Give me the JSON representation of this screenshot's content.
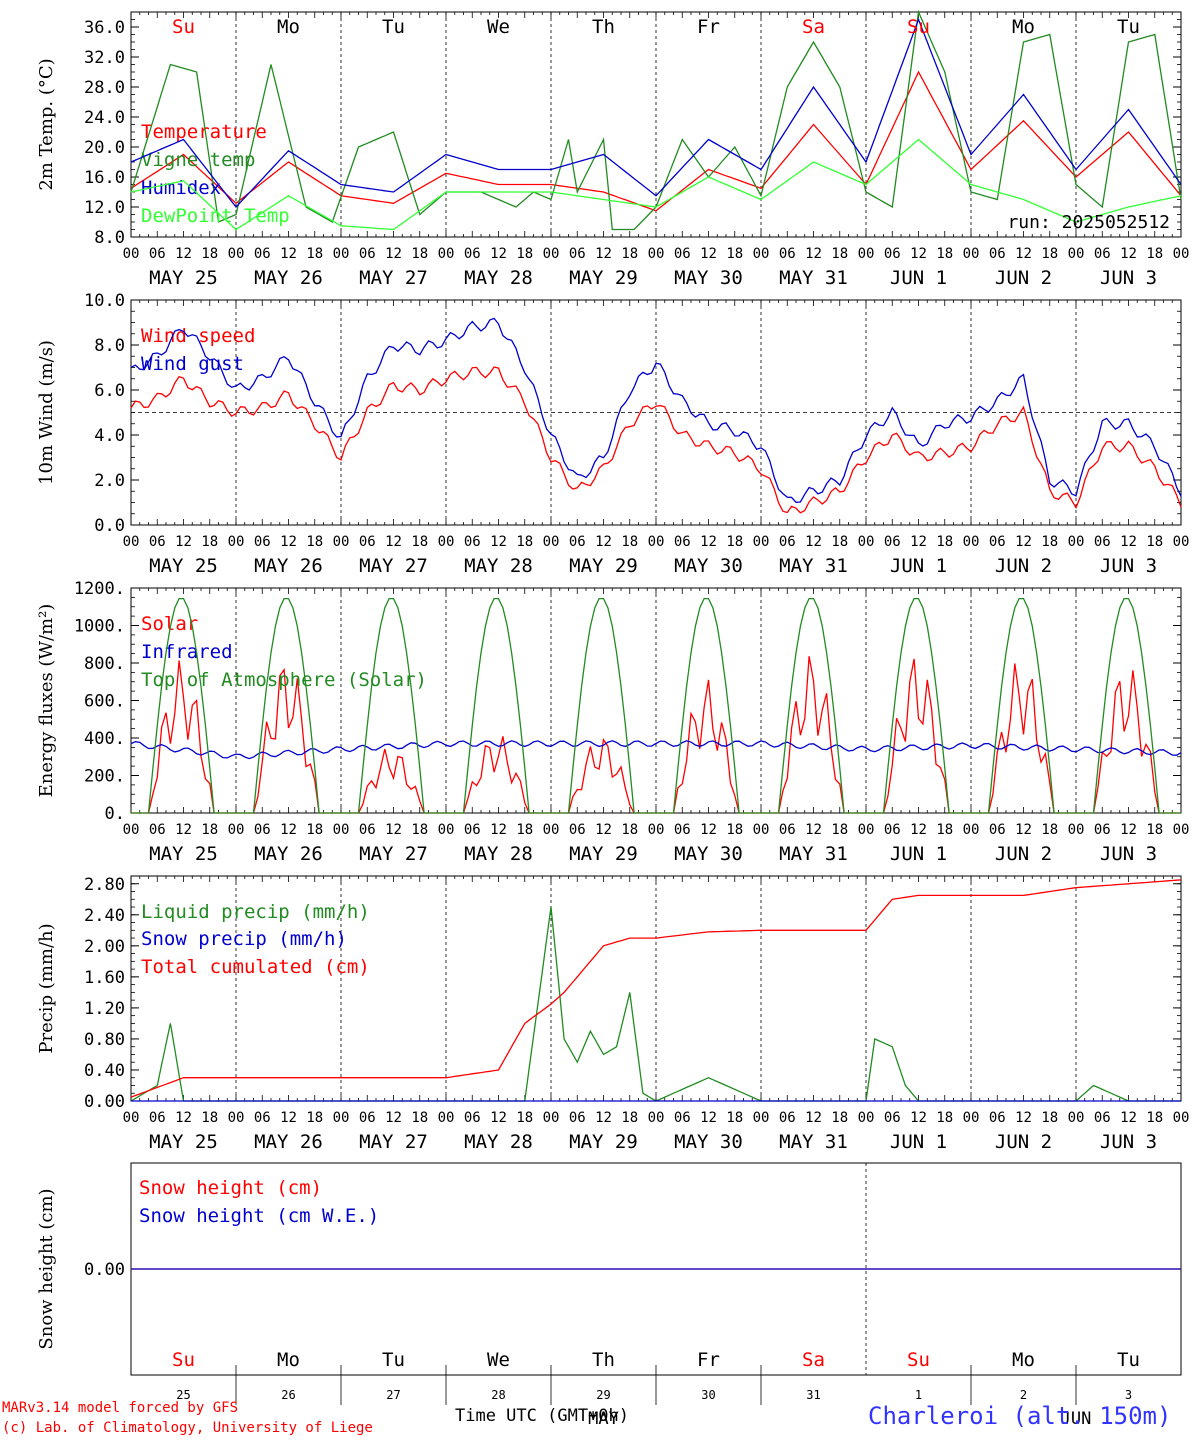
{
  "chart_data": [
    {
      "type": "line",
      "id": "temperature",
      "ylabel": "2m Temp. (°C)",
      "ylim": [
        8,
        38
      ],
      "yticks": [
        "8.0",
        "12.0",
        "16.0",
        "20.0",
        "24.0",
        "28.0",
        "32.0",
        "36.0"
      ],
      "run_label": "run: 2025052512",
      "series": [
        {
          "name": "Temperature",
          "color": "#ff0000",
          "x_hours": [
            0,
            12,
            24,
            36,
            48,
            60,
            72,
            84,
            96,
            108,
            120,
            132,
            144,
            156,
            168,
            180,
            192,
            204,
            216,
            228,
            240
          ],
          "values": [
            14.5,
            19,
            12.5,
            18,
            13.5,
            12.5,
            16.5,
            15,
            15,
            14,
            11.5,
            17,
            14.5,
            23,
            15,
            30,
            17,
            23.5,
            16,
            22,
            13.5
          ]
        },
        {
          "name": "Vigne temp",
          "color": "#228b22",
          "x_hours": [
            0,
            9,
            15,
            20,
            24,
            32,
            40,
            46,
            52,
            60,
            66,
            72,
            80,
            84,
            88,
            92,
            96,
            100,
            102,
            108,
            110,
            115,
            120,
            126,
            132,
            138,
            144,
            150,
            156,
            162,
            168,
            174,
            180,
            186,
            192,
            198,
            204,
            210,
            216,
            222,
            228,
            234,
            240,
            246,
            252,
            258,
            264
          ],
          "values": [
            14,
            31,
            30,
            10,
            11,
            31,
            12,
            10,
            20,
            22,
            11,
            14,
            14,
            13,
            12,
            14,
            13,
            21,
            14,
            21,
            9,
            9,
            12,
            21,
            16,
            20,
            13.5,
            28,
            34,
            28,
            14,
            12,
            38,
            30,
            14,
            13,
            34,
            35,
            15,
            12,
            34,
            35,
            13,
            10,
            34,
            33,
            13.5
          ]
        },
        {
          "name": "Humidex",
          "color": "#0000cc",
          "x_hours": [
            0,
            12,
            24,
            36,
            48,
            60,
            72,
            84,
            96,
            108,
            120,
            132,
            144,
            156,
            168,
            180,
            192,
            204,
            216,
            228,
            240
          ],
          "values": [
            18,
            21,
            12,
            19.5,
            15,
            14,
            19,
            17,
            17,
            19,
            13.5,
            21,
            17,
            28,
            18,
            37,
            19,
            27,
            17,
            25,
            15
          ]
        },
        {
          "name": "DewPoint Temp",
          "color": "#33ff33",
          "x_hours": [
            0,
            12,
            24,
            36,
            48,
            60,
            72,
            84,
            96,
            108,
            120,
            132,
            144,
            156,
            168,
            180,
            192,
            204,
            216,
            228,
            240
          ],
          "values": [
            14,
            15.5,
            9,
            13.5,
            9.5,
            9,
            14,
            14,
            14,
            13,
            12,
            16,
            13,
            18,
            15,
            21,
            15,
            13,
            10,
            12,
            13.5
          ]
        }
      ]
    },
    {
      "type": "line",
      "id": "wind",
      "ylabel": "10m Wind (m/s)",
      "ylim": [
        0,
        10
      ],
      "yticks": [
        "0.0",
        "2.0",
        "4.0",
        "6.0",
        "8.0",
        "10.0"
      ],
      "reference_line": 5,
      "series": [
        {
          "name": "Wind speed",
          "color": "#ff0000",
          "x_hours": [
            0,
            6,
            12,
            18,
            24,
            30,
            36,
            42,
            48,
            54,
            60,
            66,
            72,
            78,
            84,
            90,
            96,
            102,
            108,
            114,
            120,
            126,
            132,
            138,
            144,
            150,
            156,
            162,
            168,
            174,
            180,
            186,
            192,
            198,
            204,
            210,
            216,
            222,
            228,
            234,
            240
          ],
          "values": [
            5.2,
            5.6,
            6.5,
            5.5,
            5,
            5.2,
            5.8,
            4.5,
            3,
            5,
            6.2,
            6,
            6.5,
            6.8,
            6.8,
            5.5,
            3,
            1.5,
            2.5,
            4.5,
            5.5,
            4,
            3.5,
            3.2,
            2.5,
            0.5,
            1,
            1.5,
            3,
            4,
            3,
            3.2,
            3.5,
            4.5,
            5,
            1.5,
            1,
            3.5,
            3.5,
            2.5,
            1
          ]
        },
        {
          "name": "Wind gust",
          "color": "#0000cc",
          "x_hours": [
            0,
            6,
            12,
            18,
            24,
            30,
            36,
            42,
            48,
            54,
            60,
            66,
            72,
            78,
            84,
            90,
            96,
            102,
            108,
            114,
            120,
            126,
            132,
            138,
            144,
            150,
            156,
            162,
            168,
            174,
            180,
            186,
            192,
            198,
            204,
            210,
            216,
            222,
            228,
            234,
            240
          ],
          "values": [
            6.8,
            7.5,
            8.8,
            7.5,
            6,
            6.5,
            7.5,
            5.5,
            3.8,
            6.5,
            8,
            7.8,
            8.2,
            8.8,
            9,
            7,
            4,
            2,
            3,
            6,
            7.2,
            5.5,
            4.5,
            4.2,
            3.5,
            1,
            1.5,
            2,
            4,
            5,
            3.5,
            4.5,
            4.8,
            5.5,
            6.5,
            2,
            1.5,
            4.5,
            4.5,
            3.5,
            1.5
          ]
        }
      ]
    },
    {
      "type": "line",
      "id": "energy",
      "ylabel": "Energy fluxes (W/m²)",
      "ylim": [
        0,
        1200
      ],
      "yticks": [
        "0.",
        "200.",
        "400.",
        "600.",
        "800.",
        "1000.",
        "1200."
      ],
      "series": [
        {
          "name": "Solar",
          "color": "#ff0000",
          "daily_peak": [
            820,
            840,
            360,
            430,
            420,
            720,
            860,
            860,
            840,
            810
          ]
        },
        {
          "name": "Infrared",
          "color": "#0000cc",
          "x_hours": [
            0,
            24,
            48,
            72,
            96,
            120,
            144,
            168,
            192,
            216,
            240
          ],
          "values": [
            370,
            300,
            340,
            370,
            370,
            370,
            370,
            340,
            360,
            340,
            320
          ]
        },
        {
          "name": "Top of Atmosphere (Solar)",
          "color": "#228b22",
          "daily_peak": [
            1150,
            1150,
            1150,
            1150,
            1150,
            1150,
            1150,
            1150,
            1150,
            1150
          ]
        }
      ]
    },
    {
      "type": "line",
      "id": "precip",
      "ylabel": "Precip (mm/h)",
      "ylim": [
        0,
        2.9
      ],
      "yticks": [
        "0.00",
        "0.40",
        "0.80",
        "1.20",
        "1.60",
        "2.00",
        "2.40",
        "2.80"
      ],
      "series": [
        {
          "name": "Liquid precip (mm/h)",
          "color": "#228b22",
          "x_hours": [
            0,
            6,
            9,
            12,
            24,
            48,
            66,
            72,
            90,
            96,
            99,
            102,
            105,
            108,
            111,
            114,
            117,
            120,
            132,
            144,
            156,
            168,
            170,
            174,
            177,
            180,
            186,
            192,
            216,
            220,
            228,
            240
          ],
          "values": [
            0,
            0.2,
            1.0,
            0,
            0,
            0,
            0,
            0,
            0,
            2.5,
            0.8,
            0.5,
            0.9,
            0.6,
            0.7,
            1.4,
            0.1,
            0,
            0.3,
            0,
            0,
            0,
            0.8,
            0.7,
            0.2,
            0,
            0,
            0,
            0,
            0.2,
            0,
            0
          ]
        },
        {
          "name": "Snow precip (mm/h)",
          "color": "#0000cc",
          "x_hours": [
            0,
            240
          ],
          "values": [
            0,
            0
          ]
        },
        {
          "name": "Total cumulated (cm)",
          "color": "#ff0000",
          "x_hours": [
            0,
            12,
            24,
            48,
            72,
            84,
            90,
            96,
            99,
            102,
            108,
            114,
            120,
            132,
            144,
            156,
            168,
            174,
            180,
            192,
            204,
            216,
            228,
            240
          ],
          "values": [
            0.05,
            0.3,
            0.3,
            0.3,
            0.3,
            0.4,
            1.0,
            1.25,
            1.4,
            1.6,
            2.0,
            2.1,
            2.1,
            2.18,
            2.2,
            2.2,
            2.2,
            2.6,
            2.65,
            2.65,
            2.65,
            2.75,
            2.8,
            2.85
          ]
        }
      ]
    },
    {
      "type": "line",
      "id": "snow",
      "ylabel": "Snow height (cm)",
      "ylim": [
        -1,
        1
      ],
      "yticks": [
        "0.00"
      ],
      "series": [
        {
          "name": "Snow height (cm)",
          "color": "#ff0000",
          "x_hours": [
            0,
            240
          ],
          "values": [
            0,
            0
          ]
        },
        {
          "name": "Snow height (cm W.E.)",
          "color": "#0000cc",
          "x_hours": [
            0,
            240
          ],
          "values": [
            0,
            0
          ]
        }
      ]
    }
  ],
  "days": [
    {
      "abbr": "Su",
      "date": "MAY 25",
      "num": "25",
      "weekend": true
    },
    {
      "abbr": "Mo",
      "date": "MAY 26",
      "num": "26",
      "weekend": false
    },
    {
      "abbr": "Tu",
      "date": "MAY 27",
      "num": "27",
      "weekend": false
    },
    {
      "abbr": "We",
      "date": "MAY 28",
      "num": "28",
      "weekend": false
    },
    {
      "abbr": "Th",
      "date": "MAY 29",
      "num": "29",
      "weekend": false
    },
    {
      "abbr": "Fr",
      "date": "MAY 30",
      "num": "30",
      "weekend": false
    },
    {
      "abbr": "Sa",
      "date": "MAY 31",
      "num": "31",
      "weekend": true
    },
    {
      "abbr": "Su",
      "date": "JUN  1",
      "num": "1",
      "weekend": true
    },
    {
      "abbr": "Mo",
      "date": "JUN  2",
      "num": "2",
      "weekend": false
    },
    {
      "abbr": "Tu",
      "date": "JUN  3",
      "num": "3",
      "weekend": false
    }
  ],
  "hour_ticks": [
    "00",
    "06",
    "12",
    "18"
  ],
  "month_labels": {
    "may": "MAY",
    "jun": "JUN"
  },
  "footer": {
    "model_line": "MARv3.14 model forced by GFS",
    "lab_line": "(c) Lab. of Climatology, University of Liege",
    "time_label": "Time UTC (GMT+0h)",
    "station_label": "Charleroi (alt. 150m)"
  },
  "colors": {
    "weekend": "#ff0000",
    "weekday": "#000000",
    "axis": "#000000",
    "grid": "#000000"
  }
}
